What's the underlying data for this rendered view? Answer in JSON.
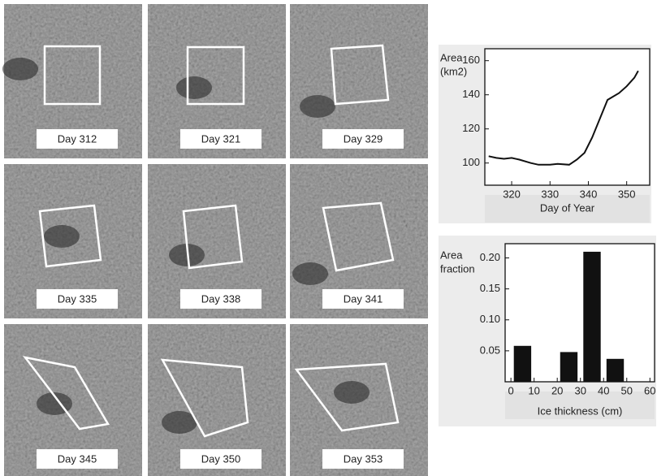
{
  "image_panels": [
    {
      "label": "Day 312"
    },
    {
      "label": "Day 321"
    },
    {
      "label": "Day 329"
    },
    {
      "label": "Day 335"
    },
    {
      "label": "Day 338"
    },
    {
      "label": "Day 341"
    },
    {
      "label": "Day 345"
    },
    {
      "label": "Day 350"
    },
    {
      "label": "Day 353"
    }
  ],
  "chart_data": [
    {
      "type": "line",
      "ylabel": [
        "Area",
        "(km2)"
      ],
      "xlabel": "Day of Year",
      "color": "#111111",
      "x": [
        314,
        316,
        318,
        320,
        322,
        325,
        327,
        330,
        332,
        335,
        337,
        339,
        341,
        343,
        345,
        348,
        350,
        352,
        353
      ],
      "values": [
        104,
        103,
        102.5,
        103,
        102,
        100,
        99,
        99,
        99.5,
        99,
        102,
        106,
        115,
        126,
        137,
        141,
        145,
        150,
        154
      ],
      "xlim": [
        313,
        356
      ],
      "xticks": [
        320,
        330,
        340,
        350
      ],
      "ylim": [
        87,
        167
      ],
      "yticks": [
        100,
        120,
        140,
        160
      ]
    },
    {
      "type": "bar",
      "ylabel": [
        "Area",
        "fraction"
      ],
      "xlabel": "Ice thickness (cm)",
      "color": "#111111",
      "x": [
        5,
        25,
        35,
        45
      ],
      "values": [
        0.058,
        0.048,
        0.21,
        0.037
      ],
      "xlim": [
        -2.5,
        62
      ],
      "xticks": [
        0,
        10,
        20,
        30,
        40,
        50,
        60
      ],
      "ylim": [
        0,
        0.223
      ],
      "yticks": [
        0.05,
        {
          "value": 0.1,
          "label": "0.10"
        },
        0.15,
        {
          "value": 0.2,
          "label": "0.20"
        }
      ]
    }
  ]
}
